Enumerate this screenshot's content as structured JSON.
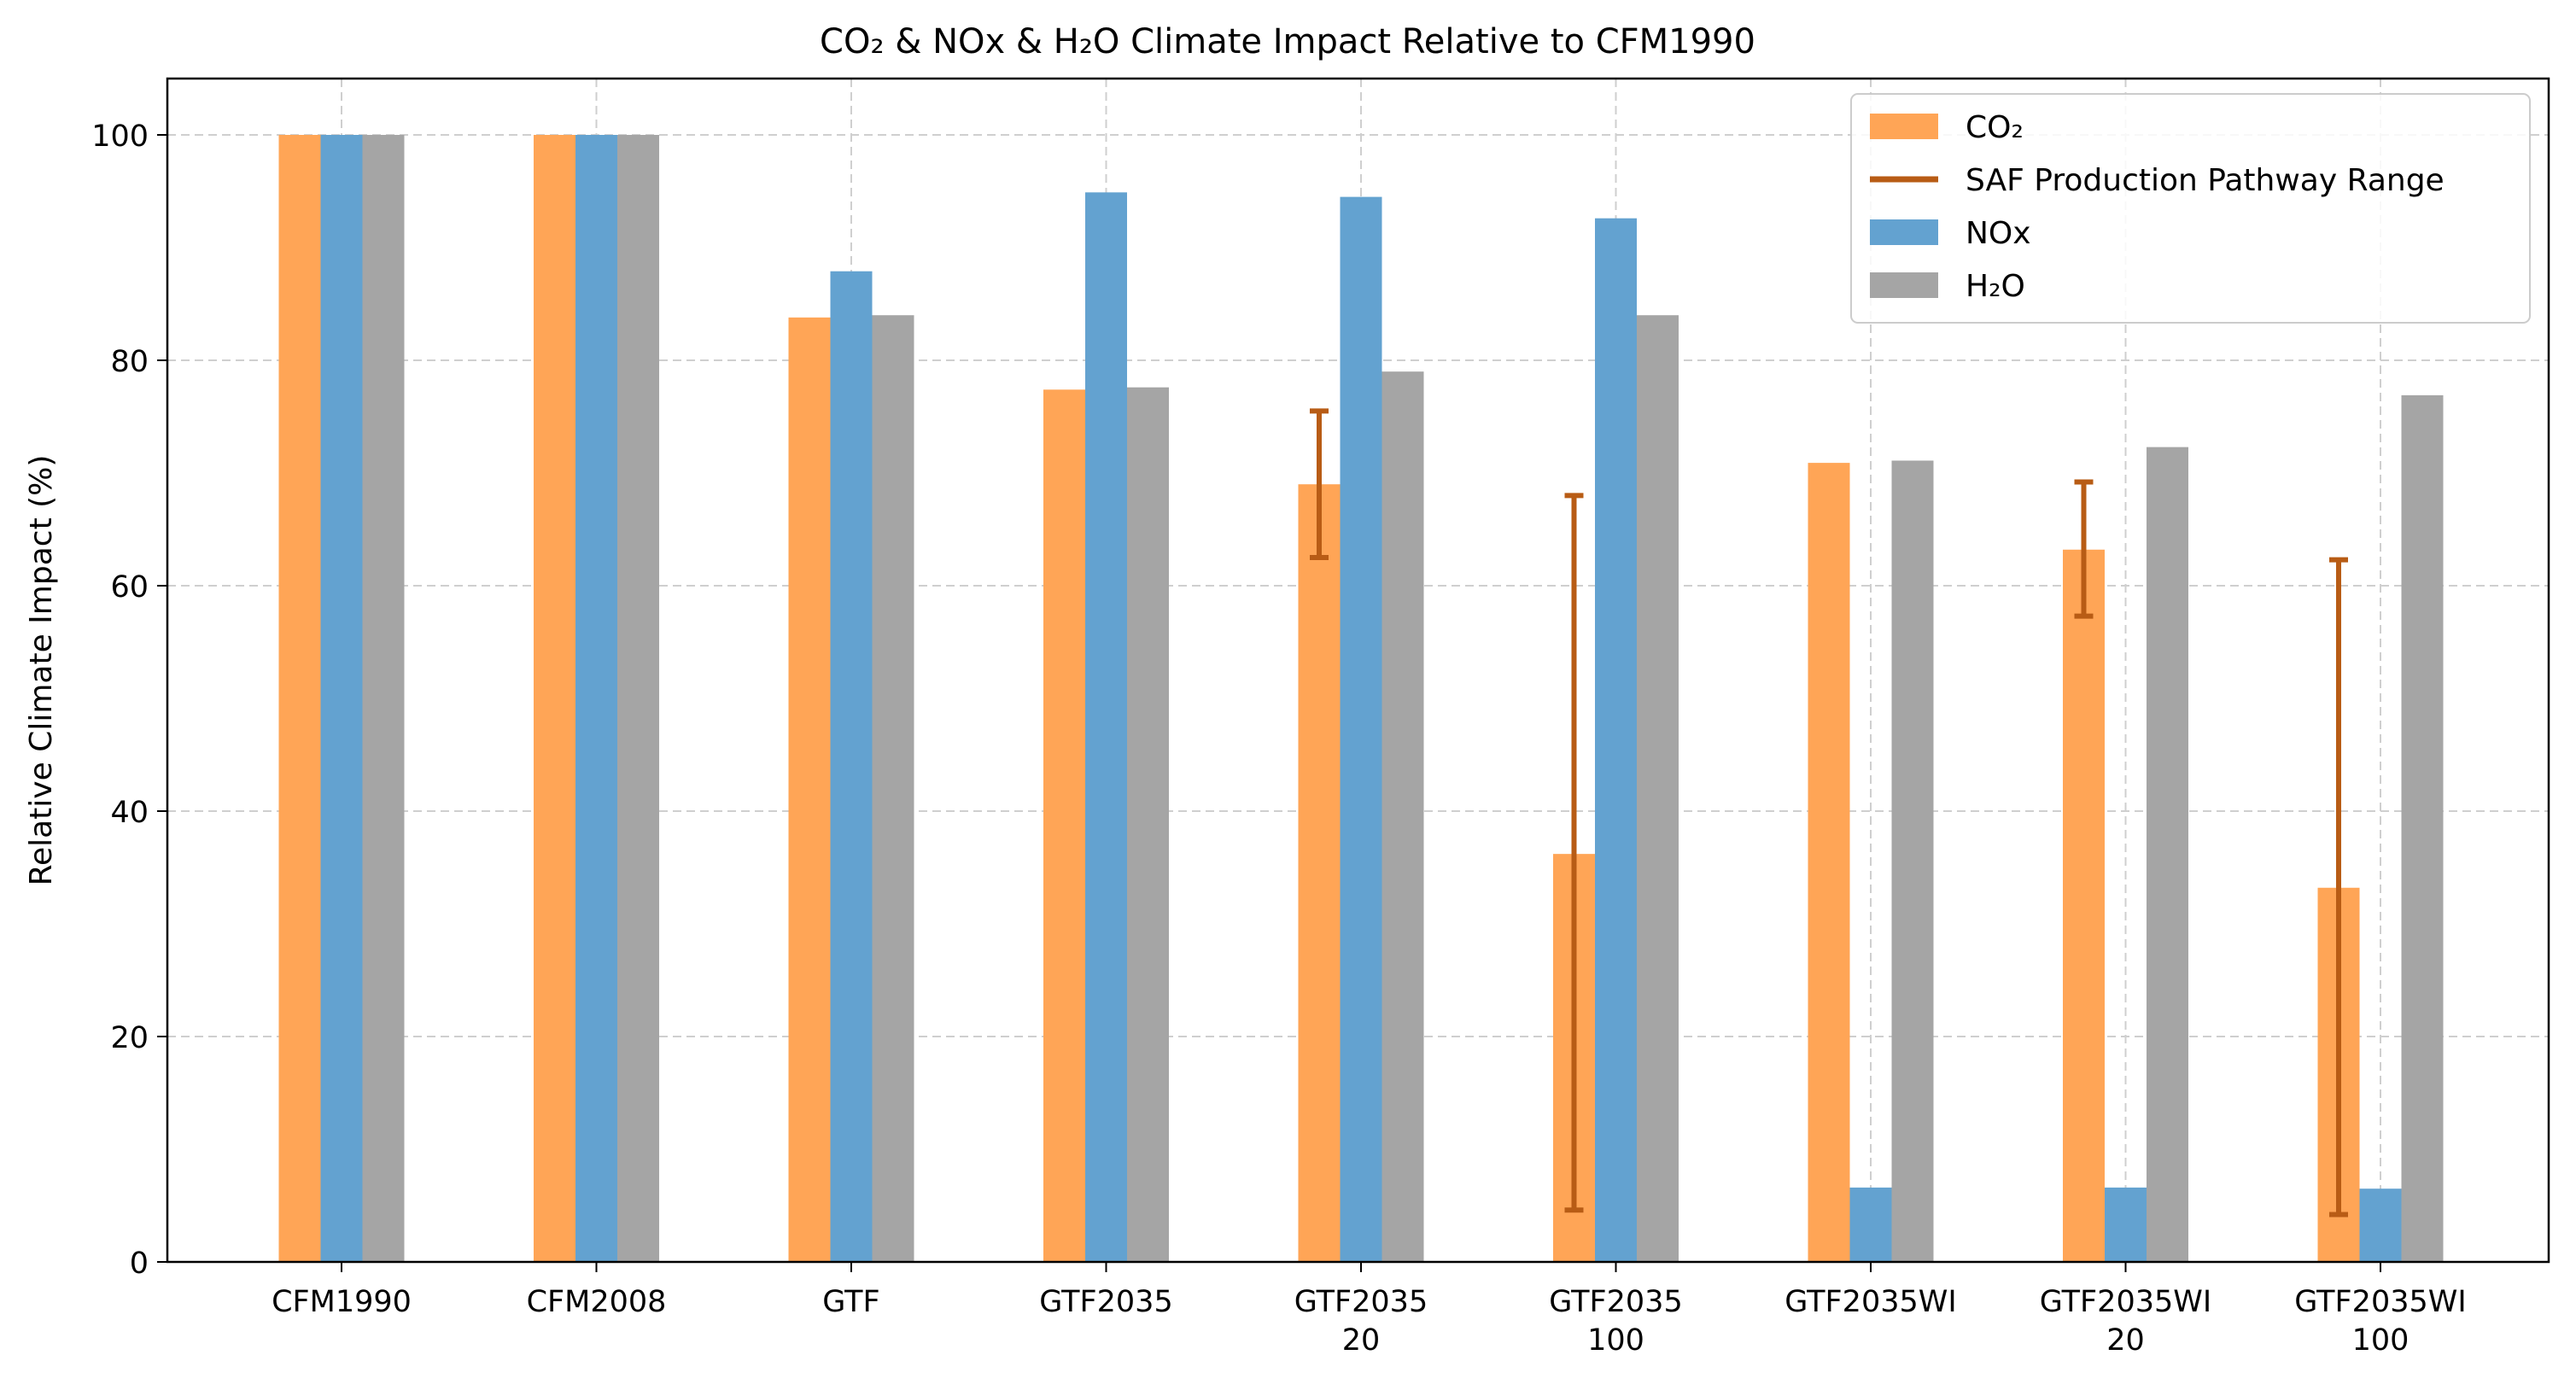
{
  "chart_data": {
    "type": "bar",
    "title": "CO₂ & NOx & H₂O Climate Impact Relative to CFM1990",
    "xlabel": "",
    "ylabel": "Relative Climate Impact (%)",
    "ylim": [
      0,
      105
    ],
    "yticks": [
      0,
      20,
      40,
      60,
      80,
      100
    ],
    "grid": true,
    "legend_position": "top-right",
    "categories": [
      [
        "CFM1990"
      ],
      [
        "CFM2008"
      ],
      [
        "GTF"
      ],
      [
        "GTF2035"
      ],
      [
        "GTF2035",
        "20"
      ],
      [
        "GTF2035",
        "100"
      ],
      [
        "GTF2035WI"
      ],
      [
        "GTF2035WI",
        "20"
      ],
      [
        "GTF2035WI",
        "100"
      ]
    ],
    "series": [
      {
        "name": "CO₂",
        "color": "#ffa556",
        "values": [
          100,
          100,
          83.8,
          77.4,
          69.0,
          36.2,
          70.9,
          63.2,
          33.2
        ],
        "error_range": [
          null,
          null,
          null,
          null,
          [
            62.5,
            75.5
          ],
          [
            4.6,
            68.0
          ],
          null,
          [
            57.3,
            69.2
          ],
          [
            4.2,
            62.3
          ]
        ]
      },
      {
        "name": "NOx",
        "color": "#63a2d0",
        "values": [
          100,
          100,
          87.9,
          94.9,
          94.5,
          92.6,
          6.6,
          6.6,
          6.5
        ]
      },
      {
        "name": "H₂O",
        "color": "#a5a5a5",
        "values": [
          100,
          100,
          84.0,
          77.6,
          79.0,
          84.0,
          71.1,
          72.3,
          76.9
        ]
      }
    ],
    "range_legend_label": "SAF Production Pathway Range",
    "range_color": "#b85c15"
  }
}
